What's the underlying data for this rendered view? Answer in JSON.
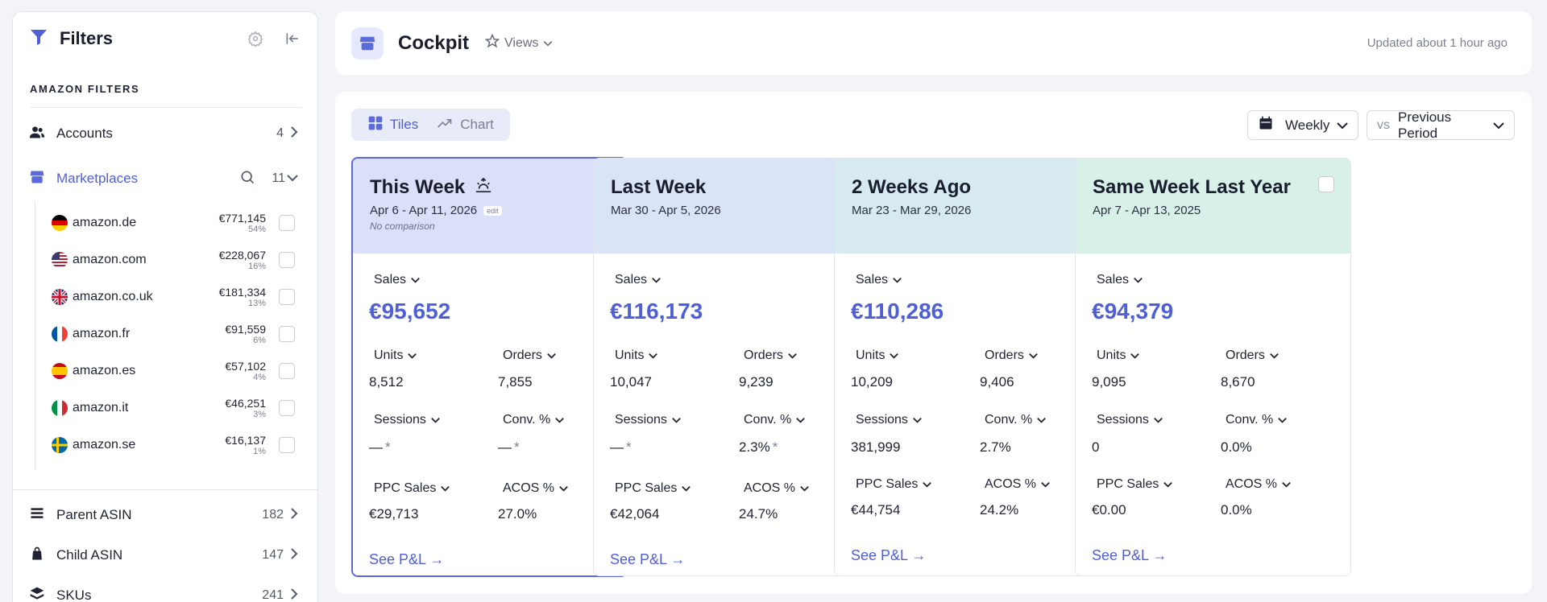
{
  "sidebar": {
    "title": "Filters",
    "section_label": "AMAZON FILTERS",
    "accounts": {
      "label": "Accounts",
      "count": "4"
    },
    "marketplaces": {
      "label": "Marketplaces",
      "count": "11"
    },
    "markets": [
      {
        "name": "amazon.de",
        "amount": "€771,145",
        "pct": "54%",
        "flag": "de"
      },
      {
        "name": "amazon.com",
        "amount": "€228,067",
        "pct": "16%",
        "flag": "us"
      },
      {
        "name": "amazon.co.uk",
        "amount": "€181,334",
        "pct": "13%",
        "flag": "uk"
      },
      {
        "name": "amazon.fr",
        "amount": "€91,559",
        "pct": "6%",
        "flag": "fr"
      },
      {
        "name": "amazon.es",
        "amount": "€57,102",
        "pct": "4%",
        "flag": "es"
      },
      {
        "name": "amazon.it",
        "amount": "€46,251",
        "pct": "3%",
        "flag": "it"
      },
      {
        "name": "amazon.se",
        "amount": "€16,137",
        "pct": "1%",
        "flag": "se"
      }
    ],
    "parent_asin": {
      "label": "Parent ASIN",
      "count": "182"
    },
    "child_asin": {
      "label": "Child ASIN",
      "count": "147"
    },
    "skus": {
      "label": "SKUs",
      "count": "241"
    }
  },
  "header": {
    "title": "Cockpit",
    "views_label": "Views",
    "updated": "Updated about 1 hour ago"
  },
  "toolbar": {
    "tiles_label": "Tiles",
    "chart_label": "Chart",
    "period_label": "Weekly",
    "vs_label": "vs",
    "compare_label": "Previous Period"
  },
  "colors": {
    "accent": "#4f5fd6",
    "card_this_week": "#dcdff8",
    "card_last_week": "#d9e4f7",
    "card_2_weeks": "#d7eaf0",
    "card_last_year": "#d8f1e8"
  },
  "labels": {
    "sales": "Sales",
    "units": "Units",
    "orders": "Orders",
    "sessions": "Sessions",
    "conv": "Conv. %",
    "ppc_sales": "PPC Sales",
    "acos": "ACOS %",
    "see_pl": "See P&L →",
    "edit": "edit"
  },
  "cards": [
    {
      "title": "This Week",
      "dates": "Apr 6 - Apr 11, 2026",
      "note": "No comparison",
      "checked": true,
      "sales": "€95,652",
      "units": "8,512",
      "orders": "7,855",
      "sessions": "—",
      "sessions_star": "*",
      "conv": "—",
      "conv_star": "*",
      "ppc_sales": "€29,713",
      "acos": "27.0%"
    },
    {
      "title": "Last Week",
      "dates": "Mar 30 - Apr 5, 2026",
      "checked": false,
      "sales": "€116,173",
      "units": "10,047",
      "orders": "9,239",
      "sessions": "—",
      "sessions_star": "*",
      "conv": "2.3%",
      "conv_star": "*",
      "ppc_sales": "€42,064",
      "acos": "24.7%"
    },
    {
      "title": "2 Weeks Ago",
      "dates": "Mar 23 - Mar 29, 2026",
      "checked": false,
      "sales": "€110,286",
      "units": "10,209",
      "orders": "9,406",
      "sessions": "381,999",
      "conv": "2.7%",
      "ppc_sales": "€44,754",
      "acos": "24.2%"
    },
    {
      "title": "Same Week Last Year",
      "dates": "Apr 7 - Apr 13, 2025",
      "checked": false,
      "sales": "€94,379",
      "units": "9,095",
      "orders": "8,670",
      "sessions": "0",
      "conv": "0.0%",
      "ppc_sales": "€0.00",
      "acos": "0.0%"
    }
  ]
}
